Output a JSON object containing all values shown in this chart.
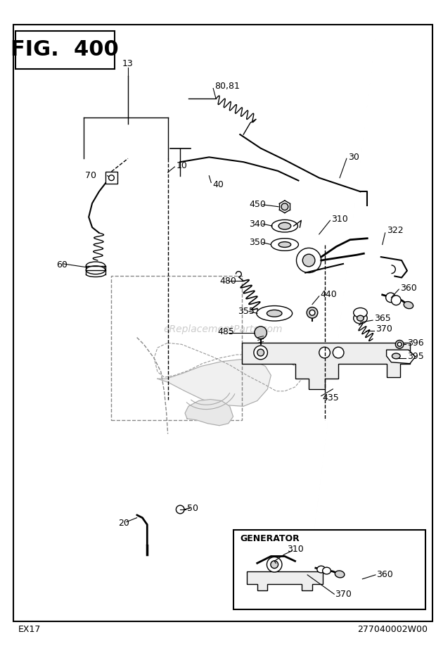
{
  "title": "FIG. 400",
  "bottom_left": "EX17",
  "bottom_right": "277040002W00",
  "watermark": "eReplacementParts.com",
  "bg": "#ffffff"
}
